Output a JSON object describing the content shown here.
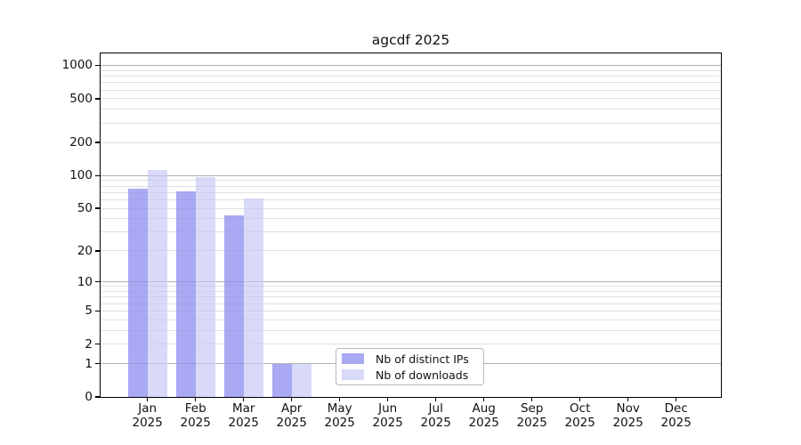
{
  "chart_data": {
    "type": "bar",
    "title": "agcdf 2025",
    "xlabel": "",
    "ylabel": "",
    "yscale": "log1p",
    "ylim": [
      0,
      1000
    ],
    "grid": true,
    "legend_position": "bottom-center",
    "yticks": [
      1000,
      500,
      200,
      100,
      50,
      20,
      10,
      5,
      2,
      1,
      0
    ],
    "categories": [
      "Jan",
      "Feb",
      "Mar",
      "Apr",
      "May",
      "Jun",
      "Jul",
      "Aug",
      "Sep",
      "Oct",
      "Nov",
      "Dec"
    ],
    "year": "2025",
    "series": [
      {
        "name": "Nb of distinct IPs",
        "color": "#a9a9f4",
        "values": [
          75,
          71,
          43,
          1,
          0,
          0,
          0,
          0,
          0,
          0,
          0,
          0
        ]
      },
      {
        "name": "Nb of downloads",
        "color": "#d9d9f9",
        "values": [
          113,
          96,
          61,
          1,
          0,
          0,
          0,
          0,
          0,
          0,
          0,
          0
        ]
      }
    ]
  }
}
